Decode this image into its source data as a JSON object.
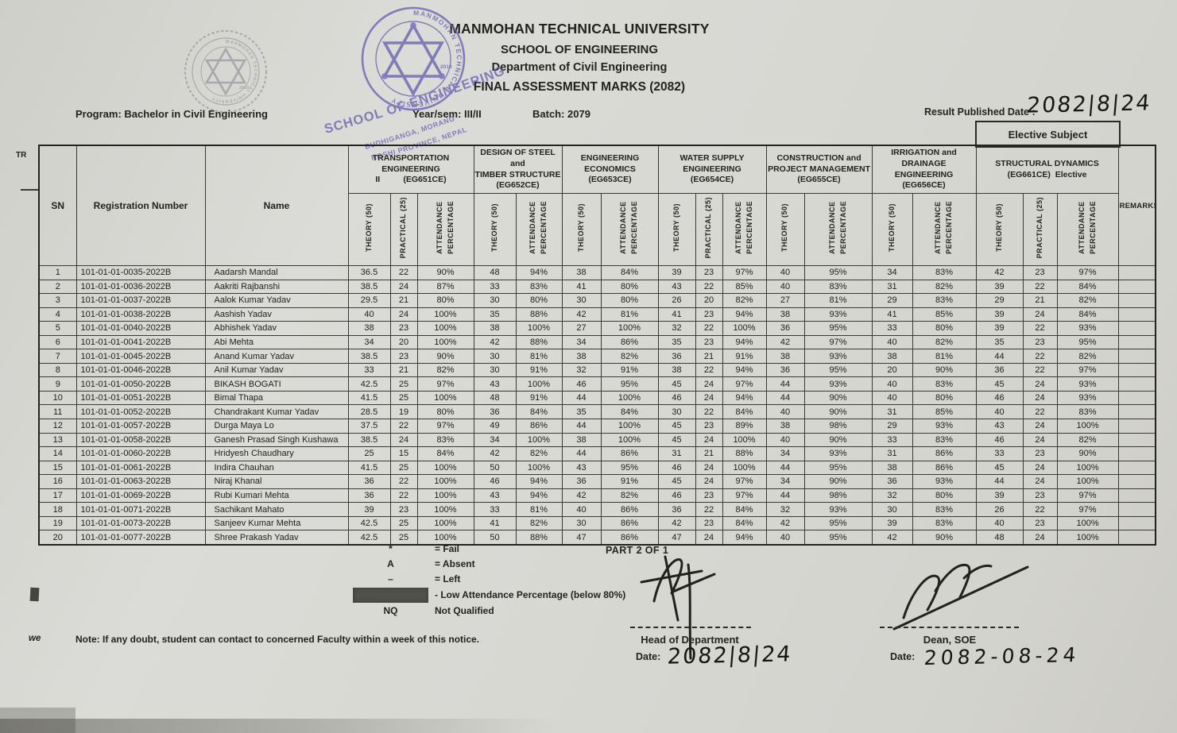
{
  "header": {
    "university": "MANMOHAN TECHNICAL UNIVERSITY",
    "school": "SCHOOL OF ENGINEERING",
    "department": "Department of Civil Engineering",
    "title": "FINAL ASSESSMENT MARKS (2082)",
    "program": "Program: Bachelor in Civil Engineering",
    "year_sem": "Year/sem: III/II",
    "batch": "Batch: 2079",
    "result_published_label": "Result Published Date :",
    "result_published_value": "2082|8|24",
    "elective_subject_label": "Elective Subject",
    "left_edge_fragment": "TR"
  },
  "stamp": {
    "ring_text": "MANMOHAN TECHNICAL UNIVERSITY",
    "year": "2019",
    "line1": "SCHOOL OF ENGINEERING",
    "line2": "BUDHIGANGA, MORANG",
    "line3": "KOSHI PROVINCE, NEPAL"
  },
  "logo": {
    "ring_text": "MANMOHAN TECHNICAL UNIVERSITY",
    "year": "2019"
  },
  "table": {
    "base_headers": [
      "SN",
      "Registration Number",
      "Name"
    ],
    "remarks_header": "REMARKS",
    "subjects": [
      {
        "lines": [
          "TRANSPORTATION ENGINEERING",
          "II          (EG651CE)"
        ],
        "cols": [
          "THEORY (50)",
          "PRACTICAL (25)",
          "ATTENDANCE\nPERCENTAGE"
        ]
      },
      {
        "lines": [
          "DESIGN OF STEEL and",
          "TIMBER STRUCTURE",
          "(EG652CE)"
        ],
        "cols": [
          "THEORY (50)",
          "ATTENDANCE\nPERCENTAGE"
        ]
      },
      {
        "lines": [
          "ENGINEERING ECONOMICS",
          "(EG653CE)"
        ],
        "cols": [
          "THEORY (50)",
          "ATTENDANCE\nPERCENTAGE"
        ]
      },
      {
        "lines": [
          "WATER SUPPLY ENGINEERING",
          "(EG654CE)"
        ],
        "cols": [
          "THEORY (50)",
          "PRACTICAL (25)",
          "ATTENDANCE\nPERCENTAGE"
        ]
      },
      {
        "lines": [
          "CONSTRUCTION and",
          "PROJECT MANAGEMENT",
          "(EG655CE)"
        ],
        "cols": [
          "THEORY (50)",
          "ATTENDANCE\nPERCENTAGE"
        ]
      },
      {
        "lines": [
          "IRRIGATION and DRAINAGE",
          "ENGINEERING",
          "(EG656CE)"
        ],
        "cols": [
          "THEORY (50)",
          "ATTENDANCE\nPERCENTAGE"
        ]
      },
      {
        "lines": [
          "STRUCTURAL DYNAMICS",
          "(EG661CE)  Elective"
        ],
        "cols": [
          "THEORY (50)",
          "PRACTICAL (25)",
          "ATTENDANCE\nPERCENTAGE"
        ]
      }
    ],
    "rows": [
      {
        "sn": "1",
        "reg": "101-01-01-0035-2022B",
        "name": "Aadarsh Mandal",
        "marks": [
          "36.5",
          "22",
          "90%",
          "48",
          "94%",
          "38",
          "84%",
          "39",
          "23",
          "97%",
          "40",
          "95%",
          "34",
          "83%",
          "42",
          "23",
          "97%"
        ],
        "remarks": ""
      },
      {
        "sn": "2",
        "reg": "101-01-01-0036-2022B",
        "name": "Aakriti Rajbanshi",
        "marks": [
          "38.5",
          "24",
          "87%",
          "33",
          "83%",
          "41",
          "80%",
          "43",
          "22",
          "85%",
          "40",
          "83%",
          "31",
          "82%",
          "39",
          "22",
          "84%"
        ],
        "remarks": ""
      },
      {
        "sn": "3",
        "reg": "101-01-01-0037-2022B",
        "name": "Aalok Kumar Yadav",
        "marks": [
          "29.5",
          "21",
          "80%",
          "30",
          "80%",
          "30",
          "80%",
          "26",
          "20",
          "82%",
          "27",
          "81%",
          "29",
          "83%",
          "29",
          "21",
          "82%"
        ],
        "remarks": ""
      },
      {
        "sn": "4",
        "reg": "101-01-01-0038-2022B",
        "name": "Aashish Yadav",
        "marks": [
          "40",
          "24",
          "100%",
          "35",
          "88%",
          "42",
          "81%",
          "41",
          "23",
          "94%",
          "38",
          "93%",
          "41",
          "85%",
          "39",
          "24",
          "84%"
        ],
        "remarks": ""
      },
      {
        "sn": "5",
        "reg": "101-01-01-0040-2022B",
        "name": "Abhishek Yadav",
        "marks": [
          "38",
          "23",
          "100%",
          "38",
          "100%",
          "27",
          "100%",
          "32",
          "22",
          "100%",
          "36",
          "95%",
          "33",
          "80%",
          "39",
          "22",
          "93%"
        ],
        "remarks": ""
      },
      {
        "sn": "6",
        "reg": "101-01-01-0041-2022B",
        "name": "Abi Mehta",
        "marks": [
          "34",
          "20",
          "100%",
          "42",
          "88%",
          "34",
          "86%",
          "35",
          "23",
          "94%",
          "42",
          "97%",
          "40",
          "82%",
          "35",
          "23",
          "95%"
        ],
        "remarks": ""
      },
      {
        "sn": "7",
        "reg": "101-01-01-0045-2022B",
        "name": "Anand Kumar Yadav",
        "marks": [
          "38.5",
          "23",
          "90%",
          "30",
          "81%",
          "38",
          "82%",
          "36",
          "21",
          "91%",
          "38",
          "93%",
          "38",
          "81%",
          "44",
          "22",
          "82%"
        ],
        "remarks": ""
      },
      {
        "sn": "8",
        "reg": "101-01-01-0046-2022B",
        "name": "Anil Kumar Yadav",
        "marks": [
          "33",
          "21",
          "82%",
          "30",
          "91%",
          "32",
          "91%",
          "38",
          "22",
          "94%",
          "36",
          "95%",
          "20",
          "90%",
          "36",
          "22",
          "97%"
        ],
        "remarks": ""
      },
      {
        "sn": "9",
        "reg": "101-01-01-0050-2022B",
        "name": "BIKASH BOGATI",
        "marks": [
          "42.5",
          "25",
          "97%",
          "43",
          "100%",
          "46",
          "95%",
          "45",
          "24",
          "97%",
          "44",
          "93%",
          "40",
          "83%",
          "45",
          "24",
          "93%"
        ],
        "remarks": ""
      },
      {
        "sn": "10",
        "reg": "101-01-01-0051-2022B",
        "name": "Bimal Thapa",
        "marks": [
          "41.5",
          "25",
          "100%",
          "48",
          "91%",
          "44",
          "100%",
          "46",
          "24",
          "94%",
          "44",
          "90%",
          "40",
          "80%",
          "46",
          "24",
          "93%"
        ],
        "remarks": ""
      },
      {
        "sn": "11",
        "reg": "101-01-01-0052-2022B",
        "name": "Chandrakant Kumar Yadav",
        "marks": [
          "28.5",
          "19",
          "80%",
          "36",
          "84%",
          "35",
          "84%",
          "30",
          "22",
          "84%",
          "40",
          "90%",
          "31",
          "85%",
          "40",
          "22",
          "83%"
        ],
        "remarks": ""
      },
      {
        "sn": "12",
        "reg": "101-01-01-0057-2022B",
        "name": "Durga Maya Lo",
        "marks": [
          "37.5",
          "22",
          "97%",
          "49",
          "86%",
          "44",
          "100%",
          "45",
          "23",
          "89%",
          "38",
          "98%",
          "29",
          "93%",
          "43",
          "24",
          "100%"
        ],
        "remarks": ""
      },
      {
        "sn": "13",
        "reg": "101-01-01-0058-2022B",
        "name": "Ganesh Prasad Singh Kushawa",
        "marks": [
          "38.5",
          "24",
          "83%",
          "34",
          "100%",
          "38",
          "100%",
          "45",
          "24",
          "100%",
          "40",
          "90%",
          "33",
          "83%",
          "46",
          "24",
          "82%"
        ],
        "remarks": ""
      },
      {
        "sn": "14",
        "reg": "101-01-01-0060-2022B",
        "name": "Hridyesh Chaudhary",
        "marks": [
          "25",
          "15",
          "84%",
          "42",
          "82%",
          "44",
          "86%",
          "31",
          "21",
          "88%",
          "34",
          "93%",
          "31",
          "86%",
          "33",
          "23",
          "90%"
        ],
        "remarks": ""
      },
      {
        "sn": "15",
        "reg": "101-01-01-0061-2022B",
        "name": "Indira Chauhan",
        "marks": [
          "41.5",
          "25",
          "100%",
          "50",
          "100%",
          "43",
          "95%",
          "46",
          "24",
          "100%",
          "44",
          "95%",
          "38",
          "86%",
          "45",
          "24",
          "100%"
        ],
        "remarks": ""
      },
      {
        "sn": "16",
        "reg": "101-01-01-0063-2022B",
        "name": "Niraj Khanal",
        "marks": [
          "36",
          "22",
          "100%",
          "46",
          "94%",
          "36",
          "91%",
          "45",
          "24",
          "97%",
          "34",
          "90%",
          "36",
          "93%",
          "44",
          "24",
          "100%"
        ],
        "remarks": ""
      },
      {
        "sn": "17",
        "reg": "101-01-01-0069-2022B",
        "name": "Rubi Kumari Mehta",
        "marks": [
          "36",
          "22",
          "100%",
          "43",
          "94%",
          "42",
          "82%",
          "46",
          "23",
          "97%",
          "44",
          "98%",
          "32",
          "80%",
          "39",
          "23",
          "97%"
        ],
        "remarks": ""
      },
      {
        "sn": "18",
        "reg": "101-01-01-0071-2022B",
        "name": "Sachikant Mahato",
        "marks": [
          "39",
          "23",
          "100%",
          "33",
          "81%",
          "40",
          "86%",
          "36",
          "22",
          "84%",
          "32",
          "93%",
          "30",
          "83%",
          "26",
          "22",
          "97%"
        ],
        "remarks": ""
      },
      {
        "sn": "19",
        "reg": "101-01-01-0073-2022B",
        "name": "Sanjeev Kumar Mehta",
        "marks": [
          "42.5",
          "25",
          "100%",
          "41",
          "82%",
          "30",
          "86%",
          "42",
          "23",
          "84%",
          "42",
          "95%",
          "39",
          "83%",
          "40",
          "23",
          "100%"
        ],
        "remarks": ""
      },
      {
        "sn": "20",
        "reg": "101-01-01-0077-2022B",
        "name": "Shree Prakash Yadav",
        "marks": [
          "42.5",
          "25",
          "100%",
          "50",
          "88%",
          "47",
          "86%",
          "47",
          "24",
          "94%",
          "40",
          "95%",
          "42",
          "90%",
          "48",
          "24",
          "100%"
        ],
        "remarks": ""
      }
    ]
  },
  "legend": {
    "items": [
      {
        "symbol": "*",
        "text": "=  Fail"
      },
      {
        "symbol": "A",
        "text": "=  Absent"
      },
      {
        "symbol": "–",
        "text": "=  Left"
      },
      {
        "symbol": "",
        "text": "-  Low Attendance Percentage  (below 80%)"
      },
      {
        "symbol": "NQ",
        "text": "Not Qualified"
      }
    ],
    "part_label": "PART 2 OF 1"
  },
  "footer": {
    "note_fragment": "we",
    "note": "Note: If any doubt, student can contact to concerned Faculty within a week of this notice.",
    "hod_label": "Head of Department",
    "hod_date_label": "Date:",
    "hod_date_value": "2082|8|24",
    "dean_label": "Dean, SOE",
    "dean_date_label": "Date:",
    "dean_date_value": "2082-08-24"
  }
}
